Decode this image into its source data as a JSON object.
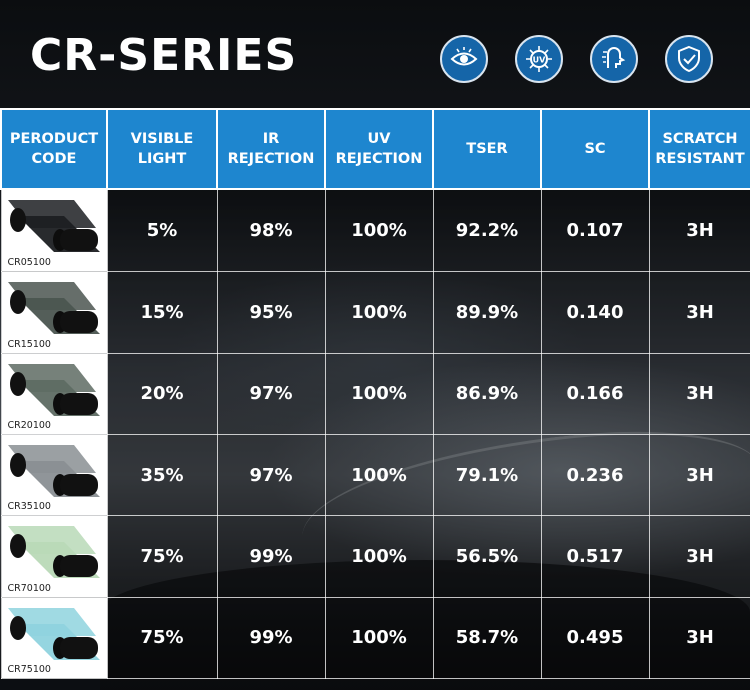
{
  "title": "CR-SERIES",
  "icons": [
    "eye-icon",
    "uv-icon",
    "heat-icon",
    "shield-icon"
  ],
  "colors": {
    "header_bg": "#1e86cf",
    "icon_bg": "#1565a8"
  },
  "columns": [
    "PERODUCT\nCODE",
    "VISIBLE\nLIGHT",
    "IR\nREJECTION",
    "UV\nREJECTION",
    "TSER",
    "SC",
    "SCRATCH\nRESISTANT"
  ],
  "rows": [
    {
      "code": "CR05100",
      "tint": "#1c1f22",
      "visible": "5%",
      "ir": "98%",
      "uv": "100%",
      "tser": "92.2%",
      "sc": "0.107",
      "scratch": "3H"
    },
    {
      "code": "CR15100",
      "tint": "#4b5550",
      "visible": "15%",
      "ir": "95%",
      "uv": "100%",
      "tser": "89.9%",
      "sc": "0.140",
      "scratch": "3H"
    },
    {
      "code": "CR20100",
      "tint": "#5e6b63",
      "visible": "20%",
      "ir": "97%",
      "uv": "100%",
      "tser": "86.9%",
      "sc": "0.166",
      "scratch": "3H"
    },
    {
      "code": "CR35100",
      "tint": "#8a8f93",
      "visible": "35%",
      "ir": "97%",
      "uv": "100%",
      "tser": "79.1%",
      "sc": "0.236",
      "scratch": "3H"
    },
    {
      "code": "CR70100",
      "tint": "#b9d9b7",
      "visible": "75%",
      "ir": "99%",
      "uv": "100%",
      "tser": "56.5%",
      "sc": "0.517",
      "scratch": "3H"
    },
    {
      "code": "CR75100",
      "tint": "#8fd3de",
      "visible": "75%",
      "ir": "99%",
      "uv": "100%",
      "tser": "58.7%",
      "sc": "0.495",
      "scratch": "3H"
    }
  ]
}
